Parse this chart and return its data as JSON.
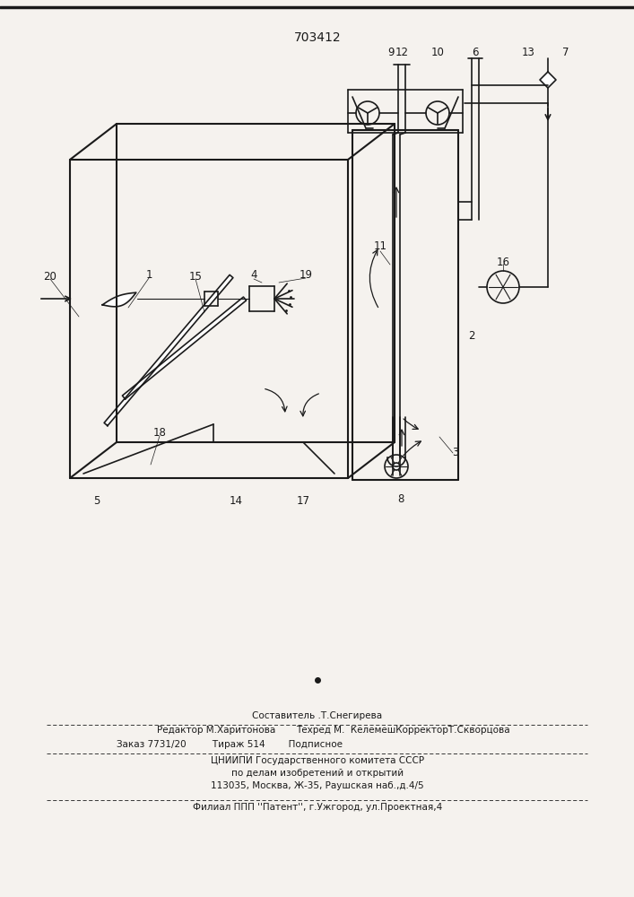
{
  "title": "703412",
  "bg_color": "#f5f2ee",
  "line_color": "#1a1a1a",
  "lw": 1.2,
  "lw2": 1.5,
  "lw_thin": 0.8,
  "footer": {
    "line1": "Составитель .Т.Снегирева",
    "line2a": "Редактор М.Харитонова",
    "line2b": "Техред М.  КелемешКорректорТ.Скворцова",
    "line3": "Заказ 7731/20         Тираж 514        Подписное",
    "line4": "ЦНИИПИ Государственного комитета СССР",
    "line5": "по делам изобретений и открытий",
    "line6": "113035, Москва, Ж-35, Раушская наб.,д.4/5",
    "line7": "Филиал ППП ''Патент'', г.Ужгород, ул.Проектная,4"
  }
}
